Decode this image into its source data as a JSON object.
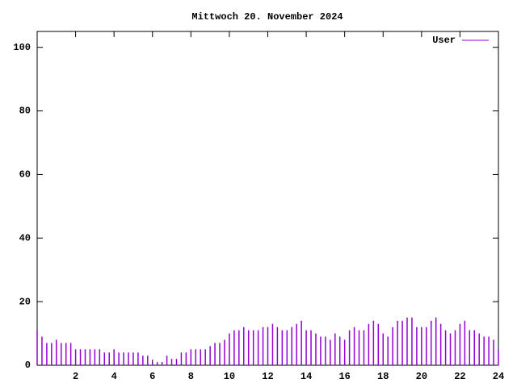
{
  "chart_data": {
    "type": "impulses",
    "title": "Mittwoch 20. November 2024",
    "x": [
      0,
      0.25,
      0.5,
      0.75,
      1,
      1.25,
      1.5,
      1.75,
      2,
      2.25,
      2.5,
      2.75,
      3,
      3.25,
      3.5,
      3.75,
      4,
      4.25,
      4.5,
      4.75,
      5,
      5.25,
      5.5,
      5.75,
      6,
      6.25,
      6.5,
      6.75,
      7,
      7.25,
      7.5,
      7.75,
      8,
      8.25,
      8.5,
      8.75,
      9,
      9.25,
      9.5,
      9.75,
      10,
      10.25,
      10.5,
      10.75,
      11,
      11.25,
      11.5,
      11.75,
      12,
      12.25,
      12.5,
      12.75,
      13,
      13.25,
      13.5,
      13.75,
      14,
      14.25,
      14.5,
      14.75,
      15,
      15.25,
      15.5,
      15.75,
      16,
      16.25,
      16.5,
      16.75,
      17,
      17.25,
      17.5,
      17.75,
      18,
      18.25,
      18.5,
      18.75,
      19,
      19.25,
      19.5,
      19.75,
      20,
      20.25,
      20.5,
      20.75,
      21,
      21.25,
      21.5,
      21.75,
      22,
      22.25,
      22.5,
      22.75,
      23,
      23.25,
      23.5,
      23.75,
      24
    ],
    "series": [
      {
        "name": "User",
        "color": "#9400d3",
        "values": [
          11,
          9,
          7,
          7,
          8,
          7,
          7,
          7,
          5,
          5,
          5,
          5,
          5,
          5,
          4,
          4,
          5,
          4,
          4,
          4,
          4,
          4,
          3,
          3,
          1,
          1,
          1,
          3,
          2,
          2,
          4,
          4,
          5,
          5,
          5,
          5,
          6,
          7,
          7,
          8,
          10,
          11,
          11,
          12,
          11,
          11,
          11,
          12,
          12,
          13,
          12,
          11,
          11,
          12,
          13,
          14,
          11,
          11,
          10,
          9,
          9,
          8,
          10,
          9,
          8,
          11,
          12,
          11,
          11,
          13,
          14,
          13,
          10,
          9,
          12,
          14,
          14,
          15,
          15,
          12,
          12,
          12,
          14,
          15,
          13,
          11,
          10,
          11,
          13,
          14,
          11,
          11,
          10,
          9,
          9,
          8,
          5
        ]
      }
    ],
    "xlim": [
      0,
      24
    ],
    "ylim": [
      0,
      105
    ],
    "xticks": [
      2,
      4,
      6,
      8,
      10,
      12,
      14,
      16,
      18,
      20,
      22,
      24
    ],
    "yticks": [
      0,
      20,
      40,
      60,
      80,
      100
    ],
    "legend": "top-right"
  }
}
